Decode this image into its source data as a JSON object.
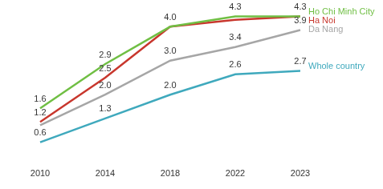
{
  "chart_data": {
    "type": "line",
    "categories": [
      "2010",
      "2014",
      "2018",
      "2022",
      "2023"
    ],
    "series": [
      {
        "name": "Ho Chi Minh City",
        "color": "#70bf44",
        "values": [
          1.6,
          2.9,
          4.0,
          4.3,
          4.3
        ],
        "value_labels": [
          "1.6",
          "2.9",
          null,
          "4.3",
          "4.3"
        ]
      },
      {
        "name": "Ha Noi",
        "color": "#c8372d",
        "values": [
          1.2,
          2.5,
          4.0,
          4.2,
          4.3
        ],
        "value_labels": [
          "1.2",
          "2.5",
          "4.0",
          null,
          null
        ]
      },
      {
        "name": "Da Nang",
        "color": "#a6a6a6",
        "values": [
          1.1,
          2.0,
          3.0,
          3.4,
          3.9
        ],
        "value_labels": [
          null,
          "2.0",
          "3.0",
          "3.4",
          "3.9"
        ]
      },
      {
        "name": "Whole country",
        "color": "#3fa9bd",
        "values": [
          0.6,
          1.3,
          2.0,
          2.6,
          2.7
        ],
        "value_labels": [
          "0.6",
          "1.3",
          "2.0",
          "2.6",
          "2.7"
        ]
      }
    ],
    "data_labels": true,
    "grid": false,
    "tick_labels": "x"
  }
}
